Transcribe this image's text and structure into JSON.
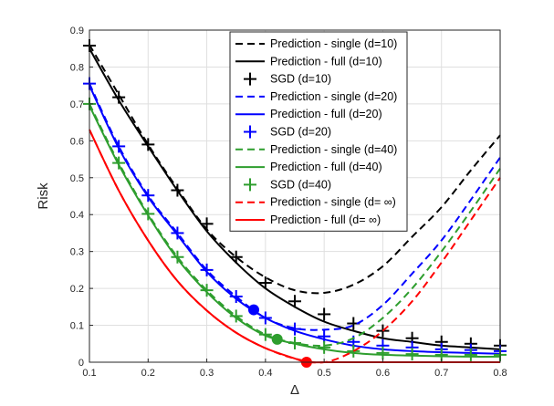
{
  "chart_data": {
    "type": "line",
    "xlabel": "Δ",
    "ylabel": "Risk",
    "xlim": [
      0.1,
      0.8
    ],
    "ylim": [
      0,
      0.9
    ],
    "xticks": [
      "0.1",
      "0.2",
      "0.3",
      "0.4",
      "0.5",
      "0.6",
      "0.7",
      "0.8"
    ],
    "yticks": [
      "0",
      "0.1",
      "0.2",
      "0.3",
      "0.4",
      "0.5",
      "0.6",
      "0.7",
      "0.8",
      "0.9"
    ],
    "grid": true,
    "legend_position": "top-right",
    "colors": {
      "d10": "#000000",
      "d20": "#0000ff",
      "d40": "#2e9e2e",
      "dinf": "#ff0000"
    },
    "series": [
      {
        "name": "Prediction - single (d=10)",
        "style": "dashed",
        "color": "#000000",
        "x": [
          0.1,
          0.15,
          0.2,
          0.25,
          0.3,
          0.35,
          0.4,
          0.45,
          0.5,
          0.55,
          0.6,
          0.65,
          0.7,
          0.75,
          0.8
        ],
        "y": [
          0.86,
          0.725,
          0.59,
          0.47,
          0.36,
          0.285,
          0.23,
          0.195,
          0.188,
          0.21,
          0.26,
          0.34,
          0.42,
          0.52,
          0.615
        ]
      },
      {
        "name": "Prediction - full (d=10)",
        "style": "solid",
        "color": "#000000",
        "x": [
          0.1,
          0.15,
          0.2,
          0.25,
          0.3,
          0.35,
          0.4,
          0.45,
          0.5,
          0.55,
          0.6,
          0.65,
          0.7,
          0.75,
          0.8
        ],
        "y": [
          0.85,
          0.71,
          0.585,
          0.465,
          0.355,
          0.27,
          0.2,
          0.15,
          0.11,
          0.085,
          0.065,
          0.055,
          0.045,
          0.04,
          0.035
        ]
      },
      {
        "name": "SGD (d=10)",
        "style": "markers",
        "color": "#000000",
        "x": [
          0.1,
          0.15,
          0.2,
          0.25,
          0.3,
          0.35,
          0.4,
          0.45,
          0.5,
          0.55,
          0.6,
          0.65,
          0.7,
          0.75,
          0.8
        ],
        "y": [
          0.858,
          0.718,
          0.59,
          0.466,
          0.375,
          0.285,
          0.215,
          0.165,
          0.13,
          0.105,
          0.085,
          0.065,
          0.055,
          0.05,
          0.045
        ]
      },
      {
        "name": "Prediction - single (d=20)",
        "style": "dashed",
        "color": "#0000ff",
        "x": [
          0.1,
          0.15,
          0.2,
          0.25,
          0.3,
          0.35,
          0.4,
          0.45,
          0.5,
          0.55,
          0.6,
          0.65,
          0.7,
          0.75,
          0.8
        ],
        "y": [
          0.755,
          0.585,
          0.452,
          0.35,
          0.25,
          0.178,
          0.12,
          0.092,
          0.088,
          0.1,
          0.155,
          0.24,
          0.33,
          0.44,
          0.555
        ]
      },
      {
        "name": "Prediction - full (d=20)",
        "style": "solid",
        "color": "#0000ff",
        "x": [
          0.1,
          0.15,
          0.2,
          0.25,
          0.3,
          0.35,
          0.4,
          0.45,
          0.5,
          0.55,
          0.6,
          0.65,
          0.7,
          0.75,
          0.8
        ],
        "y": [
          0.75,
          0.58,
          0.448,
          0.345,
          0.245,
          0.172,
          0.12,
          0.085,
          0.062,
          0.045,
          0.035,
          0.03,
          0.027,
          0.025,
          0.023
        ]
      },
      {
        "name": "SGD (d=20)",
        "style": "markers",
        "color": "#0000ff",
        "x": [
          0.1,
          0.15,
          0.2,
          0.25,
          0.3,
          0.35,
          0.4,
          0.45,
          0.5,
          0.55,
          0.6,
          0.65,
          0.7,
          0.75,
          0.8
        ],
        "y": [
          0.755,
          0.585,
          0.452,
          0.35,
          0.25,
          0.178,
          0.12,
          0.09,
          0.07,
          0.055,
          0.045,
          0.04,
          0.035,
          0.033,
          0.03
        ]
      },
      {
        "name": "Prediction - single (d=40)",
        "style": "dashed",
        "color": "#2e9e2e",
        "x": [
          0.1,
          0.15,
          0.2,
          0.25,
          0.3,
          0.35,
          0.4,
          0.45,
          0.5,
          0.55,
          0.6,
          0.65,
          0.7,
          0.75,
          0.8
        ],
        "y": [
          0.7,
          0.54,
          0.402,
          0.285,
          0.195,
          0.125,
          0.075,
          0.052,
          0.045,
          0.065,
          0.12,
          0.2,
          0.3,
          0.41,
          0.525
        ]
      },
      {
        "name": "Prediction - full (d=40)",
        "style": "solid",
        "color": "#2e9e2e",
        "x": [
          0.1,
          0.15,
          0.2,
          0.25,
          0.3,
          0.35,
          0.4,
          0.45,
          0.5,
          0.55,
          0.6,
          0.65,
          0.7,
          0.75,
          0.8
        ],
        "y": [
          0.695,
          0.535,
          0.398,
          0.28,
          0.19,
          0.12,
          0.072,
          0.05,
          0.035,
          0.025,
          0.02,
          0.018,
          0.016,
          0.015,
          0.015
        ]
      },
      {
        "name": "SGD (d=40)",
        "style": "markers",
        "color": "#2e9e2e",
        "x": [
          0.1,
          0.15,
          0.2,
          0.25,
          0.3,
          0.35,
          0.4,
          0.45,
          0.5,
          0.55,
          0.6,
          0.65,
          0.7,
          0.75,
          0.8
        ],
        "y": [
          0.7,
          0.54,
          0.402,
          0.285,
          0.195,
          0.125,
          0.075,
          0.052,
          0.04,
          0.03,
          0.025,
          0.022,
          0.02,
          0.02,
          0.02
        ]
      },
      {
        "name": "Prediction - single (d= ∞)",
        "style": "dashed",
        "color": "#ff0000",
        "x": [
          0.1,
          0.15,
          0.2,
          0.25,
          0.3,
          0.35,
          0.4,
          0.45,
          0.5,
          0.55,
          0.6,
          0.65,
          0.7,
          0.75,
          0.8
        ],
        "y": [
          0.63,
          0.465,
          0.33,
          0.22,
          0.14,
          0.08,
          0.038,
          0.01,
          0.0,
          0.03,
          0.085,
          0.165,
          0.27,
          0.385,
          0.5
        ]
      },
      {
        "name": "Prediction - full (d= ∞)",
        "style": "solid",
        "color": "#ff0000",
        "x": [
          0.1,
          0.15,
          0.2,
          0.25,
          0.3,
          0.35,
          0.4,
          0.45,
          0.47,
          0.5,
          0.55,
          0.6,
          0.65,
          0.7,
          0.75,
          0.8
        ],
        "y": [
          0.63,
          0.465,
          0.33,
          0.22,
          0.14,
          0.08,
          0.038,
          0.01,
          0.0,
          0.0,
          0.0,
          0.0,
          0.0,
          0.0,
          0.0,
          0.0
        ]
      }
    ],
    "highlight_points": [
      {
        "x": 0.38,
        "y": 0.142,
        "color": "#0000ff"
      },
      {
        "x": 0.42,
        "y": 0.062,
        "color": "#2e9e2e"
      },
      {
        "x": 0.47,
        "y": 0.0,
        "color": "#ff0000"
      }
    ]
  }
}
